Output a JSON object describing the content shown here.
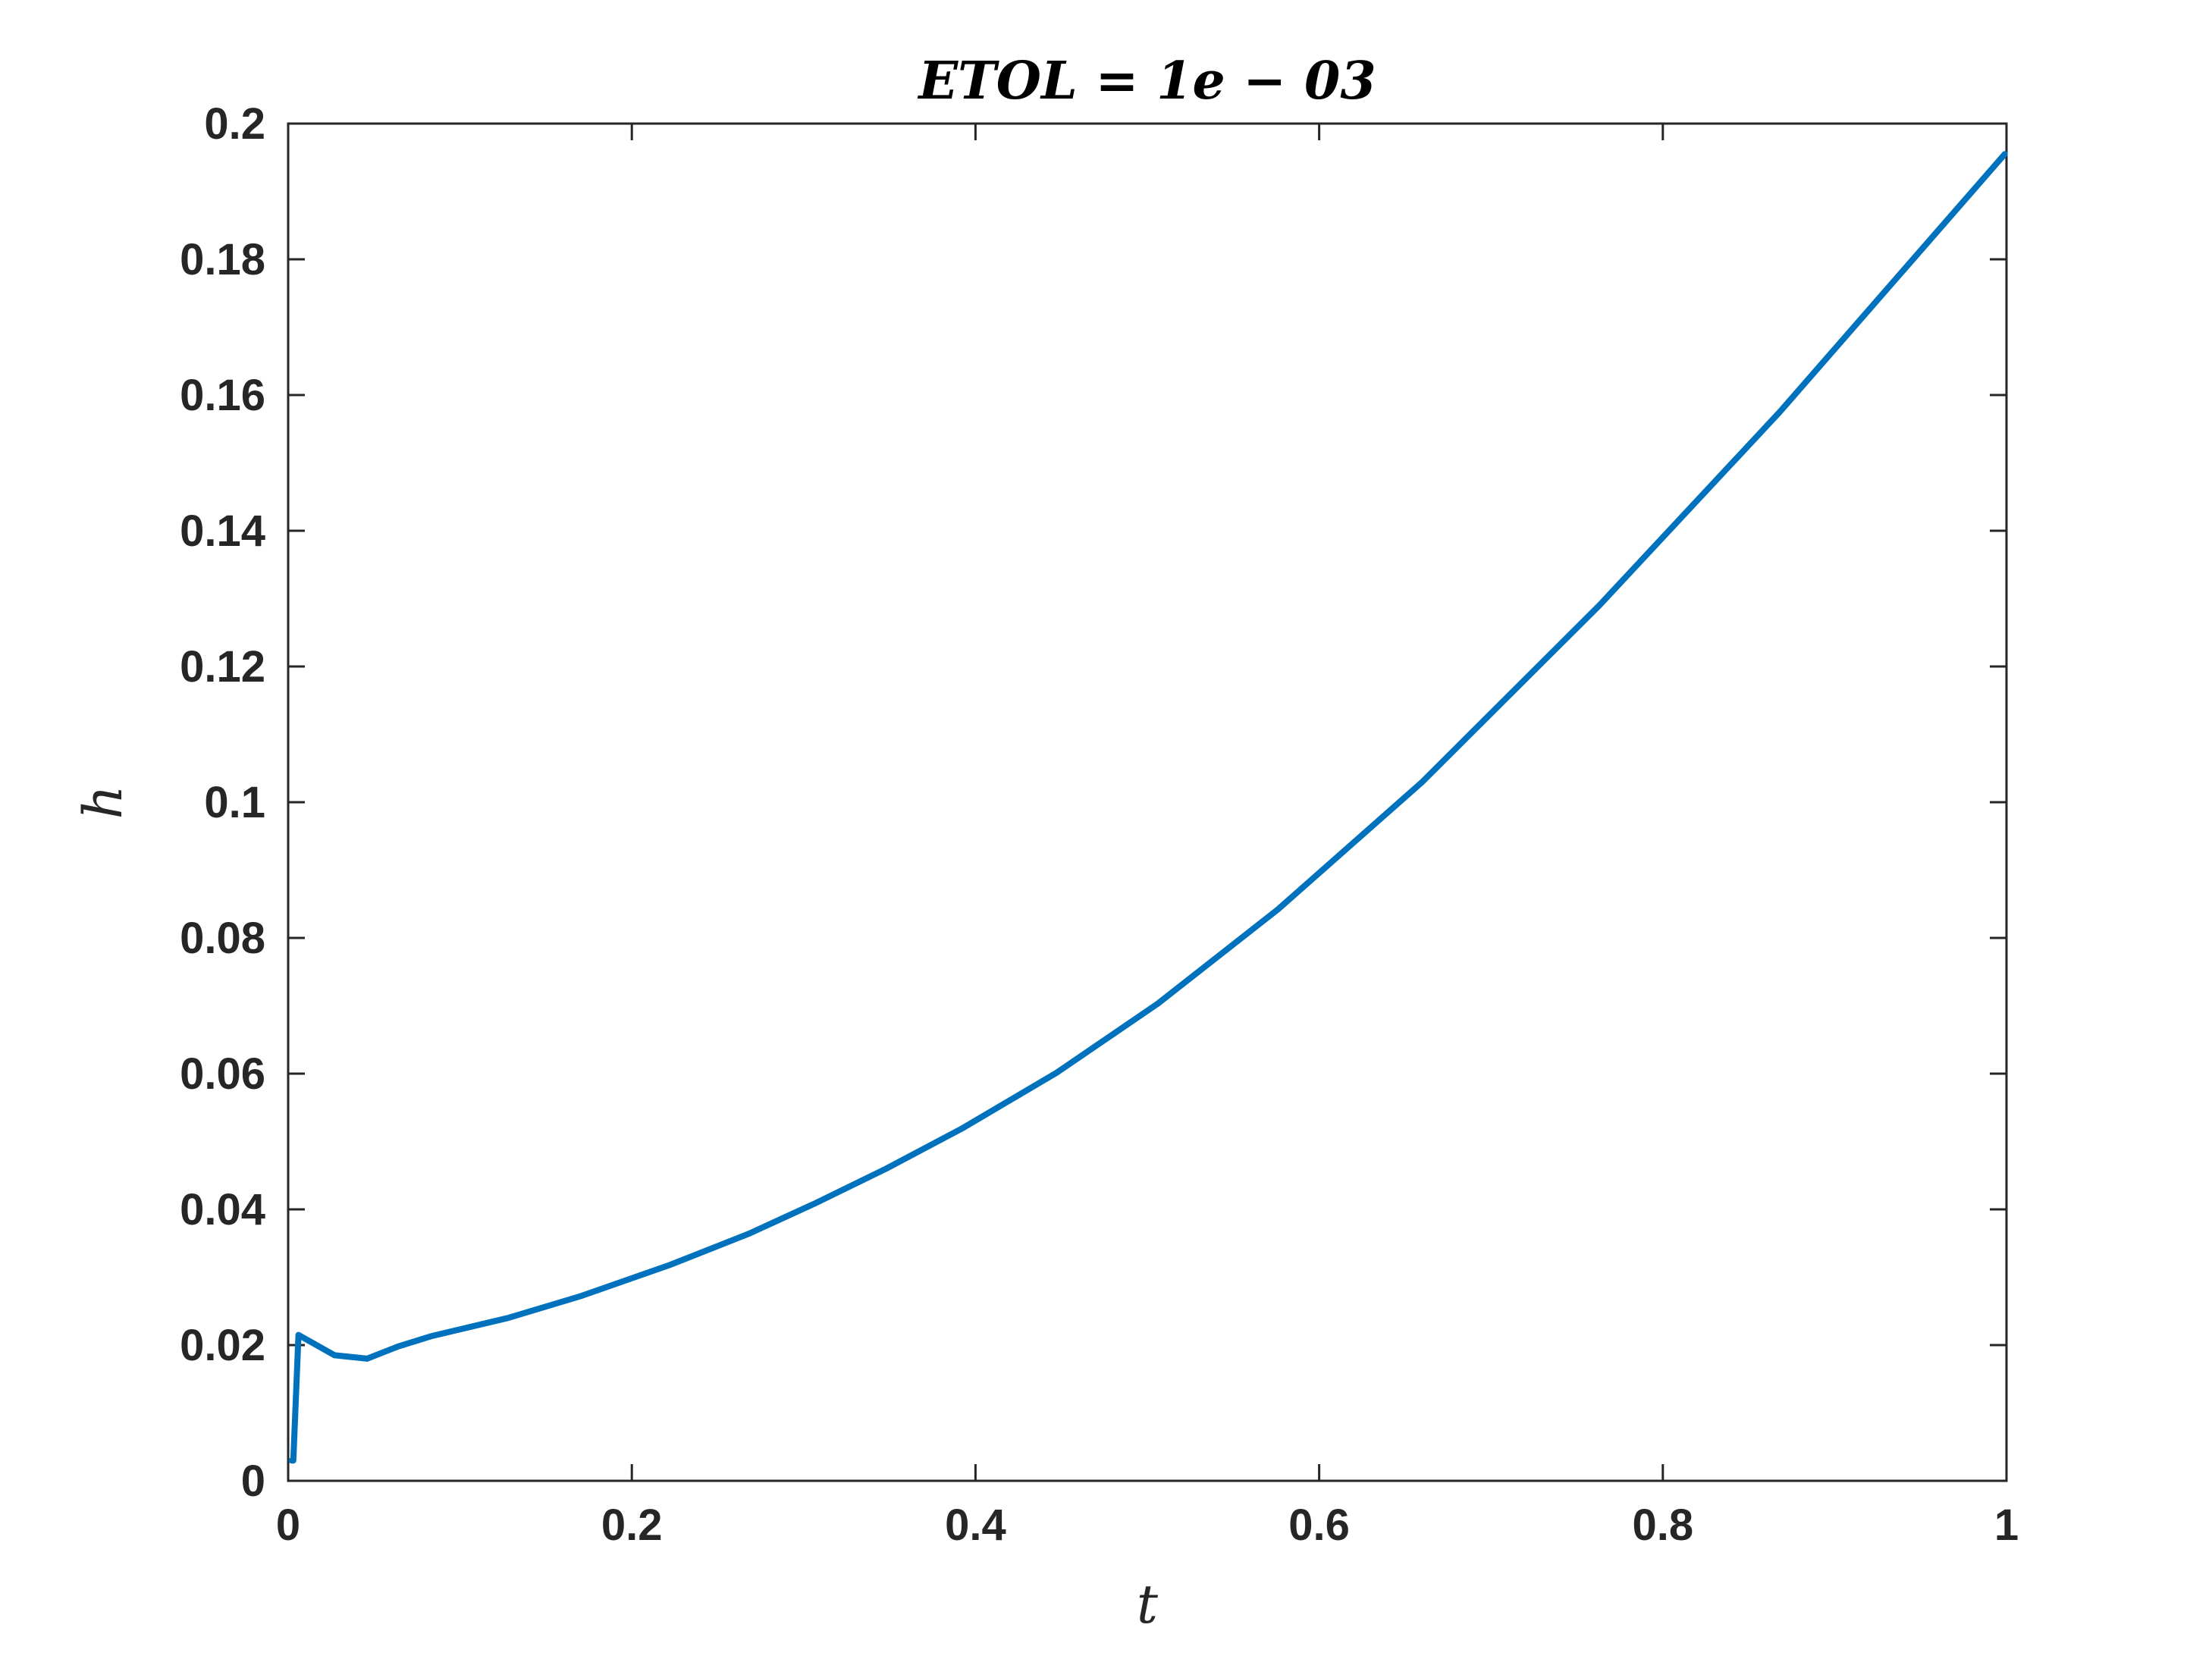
{
  "chart_data": {
    "type": "line",
    "title": "ETOL = 1e − 03",
    "xlabel": "t",
    "ylabel": "h",
    "xlim": [
      0,
      1
    ],
    "ylim": [
      0,
      0.2
    ],
    "xticks": [
      0,
      0.2,
      0.4,
      0.6,
      0.8,
      1
    ],
    "xtick_labels": [
      "0",
      "0.2",
      "0.4",
      "0.6",
      "0.8",
      "1"
    ],
    "yticks": [
      0,
      0.02,
      0.04,
      0.06,
      0.08,
      0.1,
      0.12,
      0.14,
      0.16,
      0.18,
      0.2
    ],
    "ytick_labels": [
      "0",
      "0.02",
      "0.04",
      "0.06",
      "0.08",
      "0.1",
      "0.12",
      "0.14",
      "0.16",
      "0.18",
      "0.2"
    ],
    "grid": false,
    "box": true,
    "series": [
      {
        "color": "#0072BD",
        "x": [
          0.002,
          0.003,
          0.006,
          0.027,
          0.046,
          0.064,
          0.083,
          0.128,
          0.17,
          0.222,
          0.268,
          0.306,
          0.348,
          0.392,
          0.447,
          0.506,
          0.576,
          0.66,
          0.763,
          0.868,
          0.999
        ],
        "y": [
          0.003,
          0.003,
          0.0215,
          0.0185,
          0.018,
          0.0198,
          0.0213,
          0.024,
          0.0272,
          0.0318,
          0.0364,
          0.0408,
          0.046,
          0.0519,
          0.0601,
          0.0703,
          0.0842,
          0.103,
          0.129,
          0.1575,
          0.1955
        ]
      }
    ]
  }
}
